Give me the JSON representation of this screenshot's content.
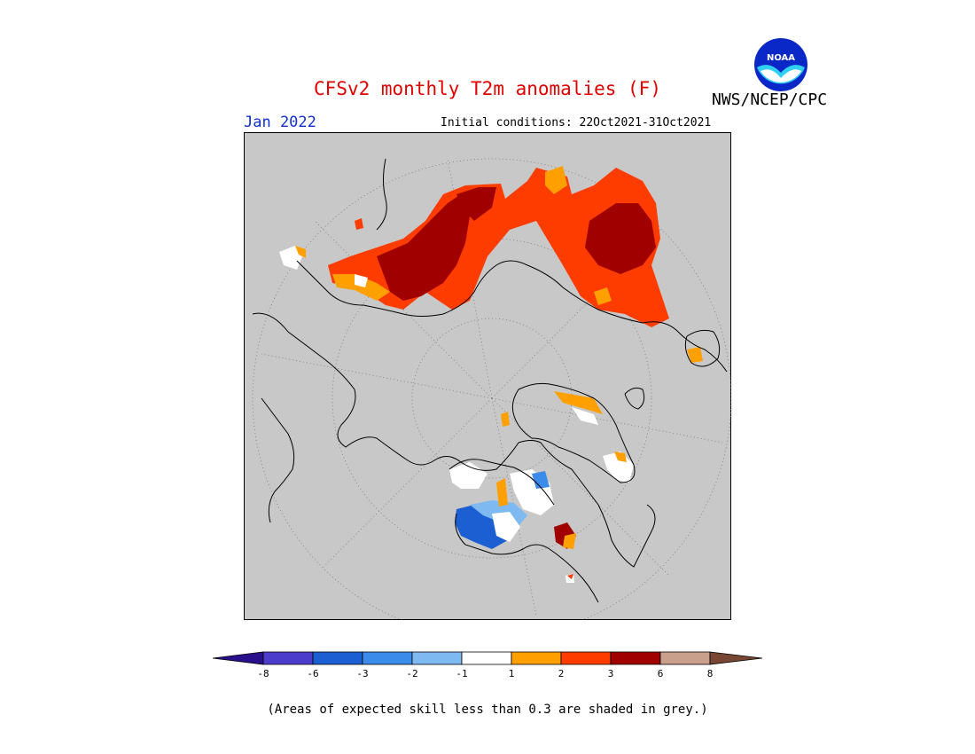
{
  "title": "CFSv2 monthly T2m anomalies (F)",
  "agency": "NWS/NCEP/CPC",
  "logo_text": "NOAA",
  "valid_month": "Jan 2022",
  "initial_conditions": "Initial conditions: 22Oct2021-31Oct2021",
  "footnote": "(Areas of expected skill less than 0.3 are shaded in grey.)",
  "colors": {
    "title": "#e00000",
    "month": "#1030d0",
    "land_grey": "#c8c8c8",
    "coast": "#000000"
  },
  "colorbar": {
    "ticks": [
      "-8",
      "-6",
      "-3",
      "-2",
      "-1",
      "1",
      "2",
      "3",
      "6",
      "8"
    ],
    "bins": [
      {
        "color": "#2a0f8c"
      },
      {
        "color": "#4b3ccc"
      },
      {
        "color": "#1b5fd2"
      },
      {
        "color": "#3b8cea"
      },
      {
        "color": "#7eb9f2"
      },
      {
        "color": "#ffffff"
      },
      {
        "color": "#ffa000"
      },
      {
        "color": "#ff3c00"
      },
      {
        "color": "#a00000"
      },
      {
        "color": "#c8a08c"
      },
      {
        "color": "#784632"
      }
    ]
  }
}
